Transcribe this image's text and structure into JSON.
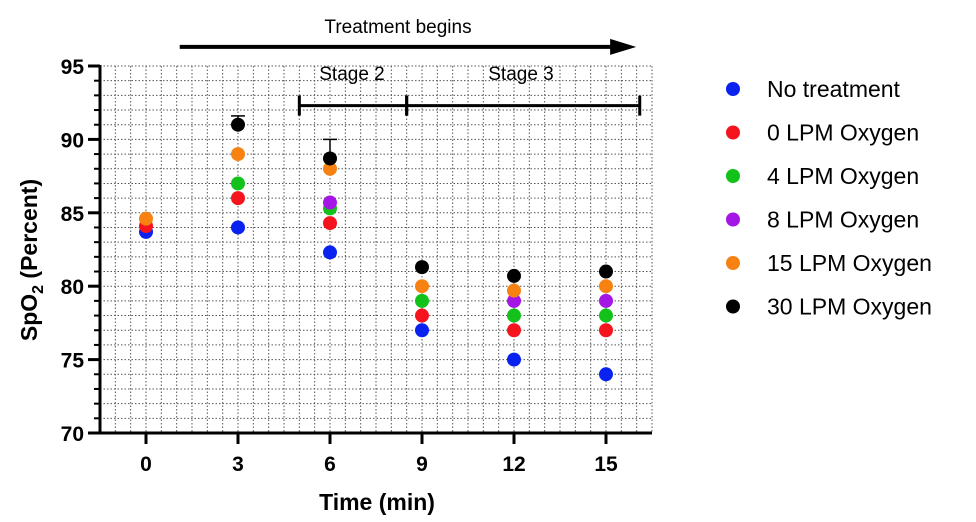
{
  "chart_data": {
    "type": "scatter",
    "xlabel": "Time (min)",
    "ylabel": {
      "prefix": "SpO",
      "sub": "2",
      "suffix": " (Percent)"
    },
    "x_ticks": [
      0,
      3,
      6,
      9,
      12,
      15
    ],
    "xlim": [
      -1.5,
      16.5
    ],
    "y_ticks": [
      70,
      75,
      80,
      85,
      90,
      95
    ],
    "ylim": [
      70,
      95
    ],
    "grid": true,
    "legend_position": "right",
    "annotations": {
      "treatment": {
        "label": "Treatment begins",
        "x_start": 1.1,
        "x_end": 15.2,
        "y": 96.3
      },
      "stage2": {
        "label": "Stage 2",
        "x_start": 5,
        "x_end": 8.5,
        "y": 92.3
      },
      "stage3": {
        "label": "Stage 3",
        "x_start": 8.5,
        "x_end": 16.1,
        "y": 92.3
      }
    },
    "series": [
      {
        "name": "No treatment",
        "color": "#0a22f0",
        "x": [
          0,
          3,
          6,
          9,
          12,
          15
        ],
        "y": [
          83.7,
          84.0,
          82.3,
          77.0,
          75.0,
          74.0
        ],
        "err_up": [
          0,
          0,
          0,
          0,
          0,
          0
        ]
      },
      {
        "name": "0 LPM Oxygen",
        "color": "#f5141e",
        "x": [
          0,
          3,
          6,
          9,
          12,
          15
        ],
        "y": [
          84.1,
          86.0,
          84.3,
          78.0,
          77.0,
          77.0
        ],
        "err_up": [
          0,
          0,
          0,
          0,
          0,
          0
        ]
      },
      {
        "name": "4 LPM Oxygen",
        "color": "#12c21a",
        "x": [
          3,
          6,
          9,
          12,
          15
        ],
        "y": [
          87.0,
          85.3,
          79.0,
          78.0,
          78.0
        ],
        "err_up": [
          0,
          0,
          0,
          0,
          0
        ]
      },
      {
        "name": "8 LPM Oxygen",
        "color": "#a416e6",
        "x": [
          6,
          12,
          15
        ],
        "y": [
          85.7,
          79.0,
          79.0
        ],
        "err_up": [
          0,
          0,
          0
        ]
      },
      {
        "name": "15 LPM Oxygen",
        "color": "#f78212",
        "x": [
          0,
          3,
          6,
          9,
          12,
          15
        ],
        "y": [
          84.6,
          89.0,
          88.0,
          80.0,
          79.7,
          80.0
        ],
        "err_up": [
          0,
          0,
          0,
          0,
          0,
          0
        ]
      },
      {
        "name": "30 LPM Oxygen",
        "color": "#000000",
        "x": [
          3,
          6,
          9,
          12,
          15
        ],
        "y": [
          91.0,
          88.7,
          81.3,
          80.7,
          81.0
        ],
        "err_up": [
          0.6,
          1.3,
          0,
          0,
          0
        ]
      }
    ]
  }
}
